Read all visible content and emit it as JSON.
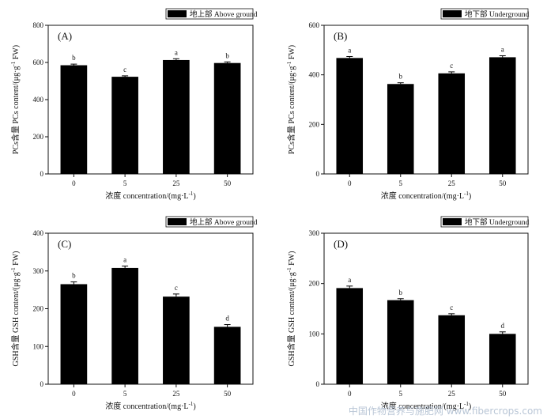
{
  "chart_data": [
    {
      "type": "bar",
      "panel_label": "(A)",
      "legend": "地上部 Above ground",
      "categories": [
        "0",
        "5",
        "25",
        "50"
      ],
      "values": [
        585,
        523,
        613,
        597
      ],
      "errors": [
        6,
        5,
        7,
        6
      ],
      "significance": [
        "b",
        "c",
        "a",
        "b"
      ],
      "xlabel_cn": "浓度",
      "xlabel_en": " concentration/(mg·L",
      "xlabel_sup": "-1",
      "xlabel_end": ")",
      "ylabel_cn": "PCs含量",
      "ylabel_en": " PCs content/(μg·g",
      "ylabel_sup": "-1",
      "ylabel_end": " FW)",
      "ylim": [
        0,
        800
      ],
      "yticks": [
        "0",
        "200",
        "400",
        "600",
        "800"
      ],
      "legend_position": "top-right"
    },
    {
      "type": "bar",
      "panel_label": "(B)",
      "legend": "地下部 Underground",
      "categories": [
        "0",
        "5",
        "25",
        "50"
      ],
      "values": [
        468,
        363,
        406,
        471
      ],
      "errors": [
        6,
        5,
        6,
        6
      ],
      "significance": [
        "a",
        "b",
        "c",
        "a"
      ],
      "xlabel_cn": "浓度",
      "xlabel_en": " concentration/(mg·L",
      "xlabel_sup": "-1",
      "xlabel_end": ")",
      "ylabel_cn": "PCs含量",
      "ylabel_en": " PCs content/(μg·g",
      "ylabel_sup": "-1",
      "ylabel_end": " FW)",
      "ylim": [
        0,
        600
      ],
      "yticks": [
        "0",
        "200",
        "400",
        "600"
      ],
      "legend_position": "top-right"
    },
    {
      "type": "bar",
      "panel_label": "(C)",
      "legend": "地上部 Above ground",
      "categories": [
        "0",
        "5",
        "25",
        "50"
      ],
      "values": [
        265,
        308,
        232,
        152
      ],
      "errors": [
        6,
        5,
        7,
        6
      ],
      "significance": [
        "b",
        "a",
        "c",
        "d"
      ],
      "xlabel_cn": "浓度",
      "xlabel_en": " concentration/(mg·L",
      "xlabel_sup": "-1",
      "xlabel_end": ")",
      "ylabel_cn": "GSH含量",
      "ylabel_en": " GSH content/(μg·g",
      "ylabel_sup": "-1",
      "ylabel_end": " FW)",
      "ylim": [
        0,
        400
      ],
      "yticks": [
        "0",
        "100",
        "200",
        "300",
        "400"
      ],
      "legend_position": "top-right"
    },
    {
      "type": "bar",
      "panel_label": "(D)",
      "legend": "地下部 Underground",
      "categories": [
        "0",
        "5",
        "25",
        "50"
      ],
      "values": [
        191,
        167,
        137,
        100
      ],
      "errors": [
        4,
        3,
        3,
        4
      ],
      "significance": [
        "a",
        "b",
        "c",
        "d"
      ],
      "xlabel_cn": "浓度",
      "xlabel_en": " concentration/(mg·L",
      "xlabel_sup": "-1",
      "xlabel_end": ")",
      "ylabel_cn": "GSH含量",
      "ylabel_en": " GSH content/(μg·g",
      "ylabel_sup": "-1",
      "ylabel_end": " FW)",
      "ylim": [
        0,
        300
      ],
      "yticks": [
        "0",
        "100",
        "200",
        "300"
      ],
      "legend_position": "top-right"
    }
  ],
  "watermark": "中国作物营养与施肥网 www.fibercrops.com",
  "colors": {
    "bar": "#000000",
    "axis": "#111111",
    "text": "#111111"
  }
}
